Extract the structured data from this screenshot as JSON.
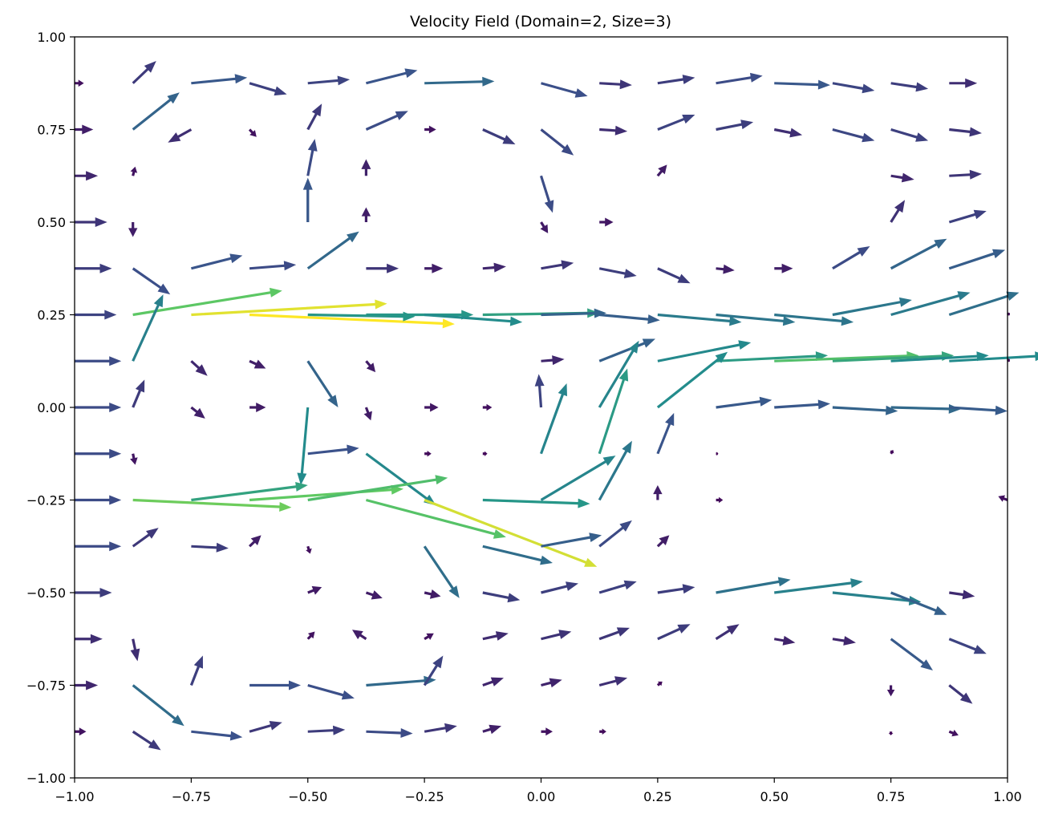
{
  "chart_data": {
    "type": "quiver",
    "title": "Velocity Field (Domain=2, Size=3)",
    "xlabel": "",
    "ylabel": "",
    "xlim": [
      -1.0,
      1.0
    ],
    "ylim": [
      -1.0,
      1.0
    ],
    "xticks": [
      "−1.00",
      "−0.75",
      "−0.50",
      "−0.25",
      "0.00",
      "0.25",
      "0.50",
      "0.75",
      "1.00"
    ],
    "yticks": [
      "−1.00",
      "−0.75",
      "−0.50",
      "−0.25",
      "0.00",
      "0.25",
      "0.50",
      "0.75",
      "1.00"
    ],
    "grid": false,
    "colormap": [
      "#440154",
      "#3b528b",
      "#21918c",
      "#5ec962",
      "#fde725"
    ],
    "arrows": [
      {
        "x": -1.0,
        "y": 0.875,
        "u": 0.02,
        "v": 0.0
      },
      {
        "x": -0.875,
        "y": 0.875,
        "u": 0.05,
        "v": 0.06
      },
      {
        "x": -0.75,
        "y": 0.875,
        "u": 0.12,
        "v": 0.015
      },
      {
        "x": -0.625,
        "y": 0.875,
        "u": 0.08,
        "v": -0.03
      },
      {
        "x": -0.5,
        "y": 0.875,
        "u": 0.09,
        "v": 0.01
      },
      {
        "x": -0.375,
        "y": 0.875,
        "u": 0.11,
        "v": 0.035
      },
      {
        "x": -0.25,
        "y": 0.875,
        "u": 0.15,
        "v": 0.005
      },
      {
        "x": 0.0,
        "y": 0.875,
        "u": 0.1,
        "v": -0.035
      },
      {
        "x": 0.125,
        "y": 0.875,
        "u": 0.07,
        "v": -0.005
      },
      {
        "x": 0.25,
        "y": 0.875,
        "u": 0.08,
        "v": 0.015
      },
      {
        "x": 0.375,
        "y": 0.875,
        "u": 0.1,
        "v": 0.02
      },
      {
        "x": 0.5,
        "y": 0.875,
        "u": 0.12,
        "v": -0.005
      },
      {
        "x": 0.625,
        "y": 0.875,
        "u": 0.09,
        "v": -0.02
      },
      {
        "x": 0.75,
        "y": 0.875,
        "u": 0.08,
        "v": -0.015
      },
      {
        "x": 0.875,
        "y": 0.875,
        "u": 0.06,
        "v": 0.0
      },
      {
        "x": -1.0,
        "y": 0.75,
        "u": 0.04,
        "v": 0.0
      },
      {
        "x": -0.875,
        "y": 0.75,
        "u": 0.1,
        "v": 0.1
      },
      {
        "x": -0.75,
        "y": 0.75,
        "u": -0.05,
        "v": -0.035
      },
      {
        "x": -0.625,
        "y": 0.75,
        "u": 0.015,
        "v": -0.02
      },
      {
        "x": -0.5,
        "y": 0.75,
        "u": 0.03,
        "v": 0.07
      },
      {
        "x": -0.375,
        "y": 0.75,
        "u": 0.09,
        "v": 0.05
      },
      {
        "x": -0.25,
        "y": 0.75,
        "u": 0.025,
        "v": 0.0
      },
      {
        "x": -0.125,
        "y": 0.75,
        "u": 0.07,
        "v": -0.04
      },
      {
        "x": 0.0,
        "y": 0.75,
        "u": 0.07,
        "v": -0.07
      },
      {
        "x": 0.125,
        "y": 0.75,
        "u": 0.06,
        "v": -0.005
      },
      {
        "x": 0.25,
        "y": 0.75,
        "u": 0.08,
        "v": 0.04
      },
      {
        "x": 0.375,
        "y": 0.75,
        "u": 0.08,
        "v": 0.02
      },
      {
        "x": 0.5,
        "y": 0.75,
        "u": 0.06,
        "v": -0.015
      },
      {
        "x": 0.625,
        "y": 0.75,
        "u": 0.09,
        "v": -0.03
      },
      {
        "x": 0.75,
        "y": 0.75,
        "u": 0.08,
        "v": -0.03
      },
      {
        "x": 0.875,
        "y": 0.75,
        "u": 0.07,
        "v": -0.01
      },
      {
        "x": -1.0,
        "y": 0.625,
        "u": 0.05,
        "v": 0.0
      },
      {
        "x": -0.875,
        "y": 0.625,
        "u": 0.005,
        "v": 0.025
      },
      {
        "x": -0.5,
        "y": 0.625,
        "u": 0.015,
        "v": 0.1
      },
      {
        "x": -0.375,
        "y": 0.625,
        "u": 0.0,
        "v": 0.045
      },
      {
        "x": 0.0,
        "y": 0.625,
        "u": 0.025,
        "v": -0.1
      },
      {
        "x": 0.25,
        "y": 0.625,
        "u": 0.02,
        "v": 0.03
      },
      {
        "x": 0.75,
        "y": 0.625,
        "u": 0.05,
        "v": -0.01
      },
      {
        "x": 0.875,
        "y": 0.625,
        "u": 0.07,
        "v": 0.005
      },
      {
        "x": -1.0,
        "y": 0.5,
        "u": 0.07,
        "v": 0.0
      },
      {
        "x": -0.875,
        "y": 0.5,
        "u": 0.0,
        "v": -0.04
      },
      {
        "x": -0.5,
        "y": 0.5,
        "u": 0.0,
        "v": 0.12
      },
      {
        "x": -0.375,
        "y": 0.5,
        "u": 0.0,
        "v": 0.04
      },
      {
        "x": 0.0,
        "y": 0.5,
        "u": 0.015,
        "v": -0.03
      },
      {
        "x": 0.125,
        "y": 0.5,
        "u": 0.03,
        "v": 0.0
      },
      {
        "x": 0.75,
        "y": 0.5,
        "u": 0.03,
        "v": 0.06
      },
      {
        "x": 0.875,
        "y": 0.5,
        "u": 0.08,
        "v": 0.03
      },
      {
        "x": -1.0,
        "y": 0.375,
        "u": 0.08,
        "v": 0.0
      },
      {
        "x": -0.875,
        "y": 0.375,
        "u": 0.08,
        "v": -0.07
      },
      {
        "x": -0.75,
        "y": 0.375,
        "u": 0.11,
        "v": 0.035
      },
      {
        "x": -0.625,
        "y": 0.375,
        "u": 0.1,
        "v": 0.01
      },
      {
        "x": -0.5,
        "y": 0.375,
        "u": 0.11,
        "v": 0.1
      },
      {
        "x": -0.375,
        "y": 0.375,
        "u": 0.07,
        "v": 0.0
      },
      {
        "x": -0.25,
        "y": 0.375,
        "u": 0.04,
        "v": 0.0
      },
      {
        "x": -0.125,
        "y": 0.375,
        "u": 0.05,
        "v": 0.005
      },
      {
        "x": 0.0,
        "y": 0.375,
        "u": 0.07,
        "v": 0.015
      },
      {
        "x": 0.125,
        "y": 0.375,
        "u": 0.08,
        "v": -0.02
      },
      {
        "x": 0.25,
        "y": 0.375,
        "u": 0.07,
        "v": -0.04
      },
      {
        "x": 0.375,
        "y": 0.375,
        "u": 0.04,
        "v": -0.005
      },
      {
        "x": 0.5,
        "y": 0.375,
        "u": 0.04,
        "v": 0.0
      },
      {
        "x": 0.625,
        "y": 0.375,
        "u": 0.08,
        "v": 0.06
      },
      {
        "x": 0.75,
        "y": 0.375,
        "u": 0.12,
        "v": 0.08
      },
      {
        "x": 0.875,
        "y": 0.375,
        "u": 0.12,
        "v": 0.05
      },
      {
        "x": -1.0,
        "y": 0.25,
        "u": 0.09,
        "v": 0.0
      },
      {
        "x": -0.875,
        "y": 0.25,
        "u": 0.32,
        "v": 0.065
      },
      {
        "x": -0.75,
        "y": 0.25,
        "u": 0.42,
        "v": 0.03
      },
      {
        "x": -0.625,
        "y": 0.25,
        "u": 0.44,
        "v": -0.025
      },
      {
        "x": -0.5,
        "y": 0.25,
        "u": 0.23,
        "v": -0.005
      },
      {
        "x": -0.375,
        "y": 0.25,
        "u": 0.23,
        "v": 0.0
      },
      {
        "x": -0.25,
        "y": 0.25,
        "u": 0.21,
        "v": -0.02
      },
      {
        "x": -0.125,
        "y": 0.25,
        "u": 0.25,
        "v": 0.005
      },
      {
        "x": 0.0,
        "y": 0.25,
        "u": 0.14,
        "v": 0.005
      },
      {
        "x": 0.125,
        "y": 0.25,
        "u": 0.13,
        "v": -0.015
      },
      {
        "x": 0.25,
        "y": 0.25,
        "u": 0.18,
        "v": -0.02
      },
      {
        "x": 0.375,
        "y": 0.25,
        "u": 0.17,
        "v": -0.02
      },
      {
        "x": 0.5,
        "y": 0.25,
        "u": 0.17,
        "v": -0.02
      },
      {
        "x": 0.625,
        "y": 0.25,
        "u": 0.17,
        "v": 0.04
      },
      {
        "x": 0.75,
        "y": 0.25,
        "u": 0.17,
        "v": 0.06
      },
      {
        "x": 0.875,
        "y": 0.25,
        "u": 0.15,
        "v": 0.06
      },
      {
        "x": 1.0,
        "y": 0.25,
        "u": 0.005,
        "v": 0.005
      },
      {
        "x": -1.0,
        "y": 0.125,
        "u": 0.1,
        "v": 0.0
      },
      {
        "x": -0.875,
        "y": 0.125,
        "u": 0.065,
        "v": 0.18
      },
      {
        "x": -0.75,
        "y": 0.125,
        "u": 0.035,
        "v": -0.04
      },
      {
        "x": -0.625,
        "y": 0.125,
        "u": 0.035,
        "v": -0.02
      },
      {
        "x": -0.5,
        "y": 0.125,
        "u": 0.065,
        "v": -0.125
      },
      {
        "x": -0.375,
        "y": 0.125,
        "u": 0.02,
        "v": -0.03
      },
      {
        "x": 0.0,
        "y": 0.125,
        "u": 0.05,
        "v": 0.005
      },
      {
        "x": 0.125,
        "y": 0.125,
        "u": 0.12,
        "v": 0.06
      },
      {
        "x": 0.25,
        "y": 0.125,
        "u": 0.2,
        "v": 0.05
      },
      {
        "x": 0.375,
        "y": 0.125,
        "u": 0.24,
        "v": 0.015
      },
      {
        "x": 0.5,
        "y": 0.125,
        "u": 0.31,
        "v": 0.015
      },
      {
        "x": 0.625,
        "y": 0.125,
        "u": 0.26,
        "v": 0.015
      },
      {
        "x": 0.75,
        "y": 0.125,
        "u": 0.21,
        "v": 0.015
      },
      {
        "x": 0.875,
        "y": 0.125,
        "u": 0.21,
        "v": 0.015
      },
      {
        "x": 1.0,
        "y": 0.125,
        "u": 0.005,
        "v": 0.005
      },
      {
        "x": -1.0,
        "y": 0.0,
        "u": 0.1,
        "v": 0.0
      },
      {
        "x": -0.875,
        "y": 0.0,
        "u": 0.025,
        "v": 0.075
      },
      {
        "x": -0.75,
        "y": 0.0,
        "u": 0.03,
        "v": -0.03
      },
      {
        "x": -0.625,
        "y": 0.0,
        "u": 0.035,
        "v": 0.0
      },
      {
        "x": -0.5,
        "y": 0.0,
        "u": -0.015,
        "v": -0.21
      },
      {
        "x": -0.375,
        "y": 0.0,
        "u": 0.01,
        "v": -0.035
      },
      {
        "x": -0.25,
        "y": 0.0,
        "u": 0.03,
        "v": 0.0
      },
      {
        "x": -0.125,
        "y": 0.0,
        "u": 0.02,
        "v": 0.0
      },
      {
        "x": 0.0,
        "y": 0.0,
        "u": -0.005,
        "v": 0.09
      },
      {
        "x": 0.0,
        "y": -0.125,
        "u": 0.055,
        "v": 0.19
      },
      {
        "x": 0.125,
        "y": 0.0,
        "u": 0.085,
        "v": 0.18
      },
      {
        "x": 0.25,
        "y": 0.0,
        "u": 0.15,
        "v": 0.15
      },
      {
        "x": 0.375,
        "y": 0.0,
        "u": 0.12,
        "v": 0.02
      },
      {
        "x": 0.5,
        "y": 0.0,
        "u": 0.12,
        "v": 0.01
      },
      {
        "x": 0.625,
        "y": 0.0,
        "u": 0.14,
        "v": -0.01
      },
      {
        "x": 0.75,
        "y": 0.0,
        "u": 0.15,
        "v": -0.005
      },
      {
        "x": 0.875,
        "y": 0.0,
        "u": 0.125,
        "v": -0.01
      },
      {
        "x": -1.0,
        "y": -0.125,
        "u": 0.1,
        "v": 0.0
      },
      {
        "x": -0.875,
        "y": -0.125,
        "u": 0.005,
        "v": -0.03
      },
      {
        "x": -0.5,
        "y": -0.125,
        "u": 0.11,
        "v": 0.015
      },
      {
        "x": -0.375,
        "y": -0.125,
        "u": 0.15,
        "v": -0.14
      },
      {
        "x": -0.25,
        "y": -0.125,
        "u": 0.015,
        "v": 0.0
      },
      {
        "x": -0.125,
        "y": -0.125,
        "u": 0.01,
        "v": 0.0
      },
      {
        "x": 0.125,
        "y": -0.125,
        "u": 0.06,
        "v": 0.23
      },
      {
        "x": 0.25,
        "y": -0.125,
        "u": 0.035,
        "v": 0.11
      },
      {
        "x": 0.375,
        "y": -0.125,
        "u": 0.005,
        "v": 0.0
      },
      {
        "x": 0.75,
        "y": -0.125,
        "u": 0.005,
        "v": 0.01
      },
      {
        "x": -1.0,
        "y": -0.25,
        "u": 0.1,
        "v": 0.0
      },
      {
        "x": -0.875,
        "y": -0.25,
        "u": 0.34,
        "v": -0.02
      },
      {
        "x": -0.75,
        "y": -0.25,
        "u": 0.25,
        "v": 0.04
      },
      {
        "x": -0.625,
        "y": -0.25,
        "u": 0.33,
        "v": 0.03
      },
      {
        "x": -0.5,
        "y": -0.25,
        "u": 0.3,
        "v": 0.06
      },
      {
        "x": -0.375,
        "y": -0.25,
        "u": 0.3,
        "v": -0.1
      },
      {
        "x": -0.25,
        "y": -0.25,
        "u": 0.37,
        "v": -0.18
      },
      {
        "x": -0.125,
        "y": -0.25,
        "u": 0.23,
        "v": -0.01
      },
      {
        "x": 0.0,
        "y": -0.25,
        "u": 0.16,
        "v": 0.12
      },
      {
        "x": 0.125,
        "y": -0.25,
        "u": 0.07,
        "v": 0.16
      },
      {
        "x": 0.25,
        "y": -0.25,
        "u": 0.0,
        "v": 0.04
      },
      {
        "x": 0.375,
        "y": -0.25,
        "u": 0.015,
        "v": 0.0
      },
      {
        "x": 1.0,
        "y": -0.25,
        "u": -0.02,
        "v": 0.01
      },
      {
        "x": -1.0,
        "y": -0.375,
        "u": 0.1,
        "v": 0.0
      },
      {
        "x": -0.875,
        "y": -0.375,
        "u": 0.055,
        "v": 0.05
      },
      {
        "x": -0.75,
        "y": -0.375,
        "u": 0.08,
        "v": -0.005
      },
      {
        "x": -0.625,
        "y": -0.375,
        "u": 0.025,
        "v": 0.03
      },
      {
        "x": -0.5,
        "y": -0.375,
        "u": 0.005,
        "v": -0.02
      },
      {
        "x": -0.25,
        "y": -0.375,
        "u": 0.075,
        "v": -0.14
      },
      {
        "x": -0.125,
        "y": -0.375,
        "u": 0.15,
        "v": -0.045
      },
      {
        "x": 0.0,
        "y": -0.375,
        "u": 0.13,
        "v": 0.03
      },
      {
        "x": 0.125,
        "y": -0.375,
        "u": 0.07,
        "v": 0.07
      },
      {
        "x": 0.25,
        "y": -0.375,
        "u": 0.025,
        "v": 0.03
      },
      {
        "x": -1.0,
        "y": -0.5,
        "u": 0.08,
        "v": 0.0
      },
      {
        "x": -0.5,
        "y": -0.5,
        "u": 0.03,
        "v": 0.015
      },
      {
        "x": -0.375,
        "y": -0.5,
        "u": 0.035,
        "v": -0.015
      },
      {
        "x": -0.25,
        "y": -0.5,
        "u": 0.035,
        "v": -0.01
      },
      {
        "x": -0.125,
        "y": -0.5,
        "u": 0.08,
        "v": -0.02
      },
      {
        "x": 0.0,
        "y": -0.5,
        "u": 0.08,
        "v": 0.025
      },
      {
        "x": 0.125,
        "y": -0.5,
        "u": 0.08,
        "v": 0.03
      },
      {
        "x": 0.25,
        "y": -0.5,
        "u": 0.08,
        "v": 0.015
      },
      {
        "x": 0.375,
        "y": -0.5,
        "u": 0.16,
        "v": 0.035
      },
      {
        "x": 0.5,
        "y": -0.5,
        "u": 0.19,
        "v": 0.03
      },
      {
        "x": 0.625,
        "y": -0.5,
        "u": 0.19,
        "v": -0.025
      },
      {
        "x": 0.75,
        "y": -0.5,
        "u": 0.12,
        "v": -0.06
      },
      {
        "x": 0.875,
        "y": -0.5,
        "u": 0.055,
        "v": -0.01
      },
      {
        "x": -1.0,
        "y": -0.625,
        "u": 0.06,
        "v": 0.0
      },
      {
        "x": -0.875,
        "y": -0.625,
        "u": 0.01,
        "v": -0.06
      },
      {
        "x": -0.5,
        "y": -0.625,
        "u": 0.015,
        "v": 0.02
      },
      {
        "x": -0.375,
        "y": -0.625,
        "u": -0.03,
        "v": 0.025
      },
      {
        "x": -0.25,
        "y": -0.625,
        "u": 0.02,
        "v": 0.015
      },
      {
        "x": -0.125,
        "y": -0.625,
        "u": 0.055,
        "v": 0.015
      },
      {
        "x": 0.0,
        "y": -0.625,
        "u": 0.065,
        "v": 0.02
      },
      {
        "x": 0.125,
        "y": -0.625,
        "u": 0.065,
        "v": 0.03
      },
      {
        "x": 0.25,
        "y": -0.625,
        "u": 0.07,
        "v": 0.04
      },
      {
        "x": 0.375,
        "y": -0.625,
        "u": 0.05,
        "v": 0.04
      },
      {
        "x": 0.5,
        "y": -0.625,
        "u": 0.045,
        "v": -0.01
      },
      {
        "x": 0.625,
        "y": -0.625,
        "u": 0.05,
        "v": -0.01
      },
      {
        "x": 0.75,
        "y": -0.625,
        "u": 0.09,
        "v": -0.085
      },
      {
        "x": 0.875,
        "y": -0.625,
        "u": 0.08,
        "v": -0.04
      },
      {
        "x": -1.0,
        "y": -0.75,
        "u": 0.05,
        "v": 0.0
      },
      {
        "x": -0.875,
        "y": -0.75,
        "u": 0.11,
        "v": -0.11
      },
      {
        "x": -0.75,
        "y": -0.75,
        "u": 0.025,
        "v": 0.08
      },
      {
        "x": -0.625,
        "y": -0.75,
        "u": 0.11,
        "v": 0.0
      },
      {
        "x": -0.5,
        "y": -0.75,
        "u": 0.1,
        "v": -0.035
      },
      {
        "x": -0.375,
        "y": -0.75,
        "u": 0.15,
        "v": 0.015
      },
      {
        "x": -0.25,
        "y": -0.75,
        "u": 0.04,
        "v": 0.08
      },
      {
        "x": -0.125,
        "y": -0.75,
        "u": 0.045,
        "v": 0.02
      },
      {
        "x": 0.0,
        "y": -0.75,
        "u": 0.045,
        "v": 0.015
      },
      {
        "x": 0.125,
        "y": -0.75,
        "u": 0.06,
        "v": 0.02
      },
      {
        "x": 0.25,
        "y": -0.75,
        "u": 0.01,
        "v": 0.01
      },
      {
        "x": 0.75,
        "y": -0.75,
        "u": 0.0,
        "v": -0.03
      },
      {
        "x": 0.875,
        "y": -0.75,
        "u": 0.05,
        "v": -0.05
      },
      {
        "x": -1.0,
        "y": -0.875,
        "u": 0.025,
        "v": 0.0
      },
      {
        "x": -0.875,
        "y": -0.875,
        "u": 0.06,
        "v": -0.05
      },
      {
        "x": -0.75,
        "y": -0.875,
        "u": 0.11,
        "v": -0.015
      },
      {
        "x": -0.625,
        "y": -0.875,
        "u": 0.07,
        "v": 0.025
      },
      {
        "x": -0.5,
        "y": -0.875,
        "u": 0.08,
        "v": 0.005
      },
      {
        "x": -0.375,
        "y": -0.875,
        "u": 0.1,
        "v": -0.005
      },
      {
        "x": -0.25,
        "y": -0.875,
        "u": 0.07,
        "v": 0.015
      },
      {
        "x": -0.125,
        "y": -0.875,
        "u": 0.04,
        "v": 0.015
      },
      {
        "x": 0.0,
        "y": -0.875,
        "u": 0.025,
        "v": 0.0
      },
      {
        "x": 0.125,
        "y": -0.875,
        "u": 0.015,
        "v": 0.0
      },
      {
        "x": 0.75,
        "y": -0.875,
        "u": 0.0,
        "v": -0.01
      },
      {
        "x": 0.875,
        "y": -0.875,
        "u": 0.02,
        "v": -0.01
      }
    ]
  }
}
